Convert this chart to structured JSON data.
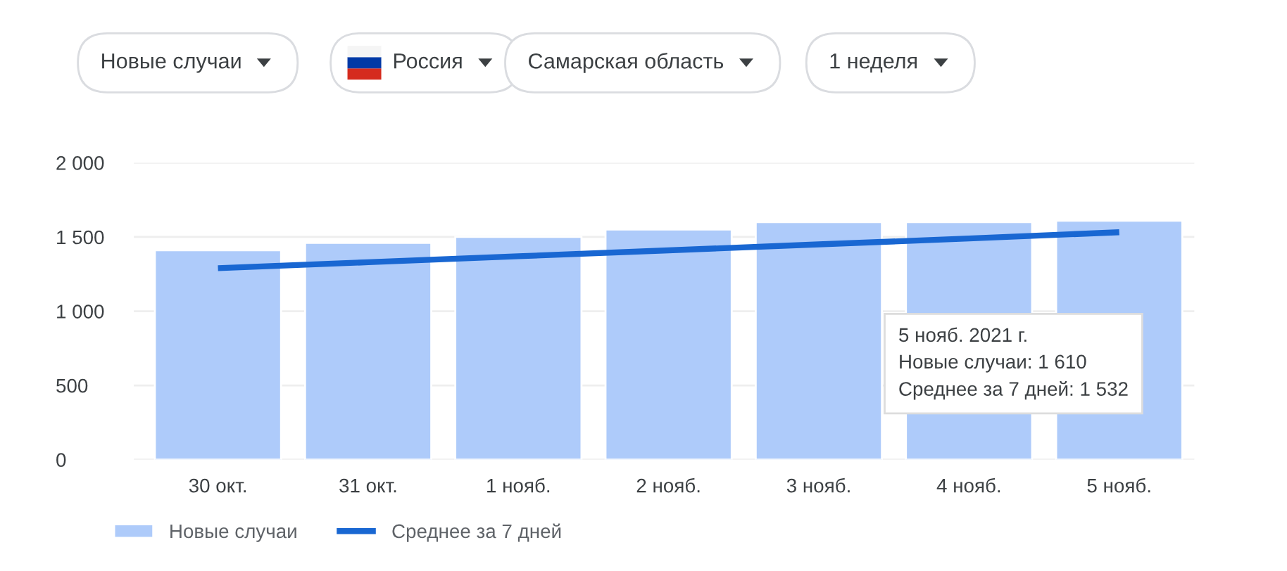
{
  "chart_data": {
    "type": "bar",
    "categories": [
      "30 окт.",
      "31 окт.",
      "1 нояб.",
      "2 нояб.",
      "3 нояб.",
      "4 нояб.",
      "5 нояб."
    ],
    "series": [
      {
        "name": "Новые случаи",
        "color": "#aecbfa",
        "values": [
          1410,
          1460,
          1500,
          1550,
          1600,
          1600,
          1610
        ]
      },
      {
        "name": "Среднее за 7 дней",
        "type": "line",
        "color": "#1967d2",
        "values": [
          1290,
          1330,
          1370,
          1410,
          1450,
          1490,
          1532
        ]
      }
    ],
    "ylim": [
      0,
      2000
    ],
    "yticks": [
      0,
      500,
      {
        "value": 1000,
        "label": "1 000"
      },
      {
        "value": 1500,
        "label": "1 500"
      },
      {
        "value": 2000,
        "label": "2 000"
      }
    ],
    "grid": "y",
    "legend": "bottom left",
    "line_style": "solid",
    "annotations": [
      "Новые случаи",
      "Россия",
      "Самарская область",
      "1 неделя",
      "5 нояб. 2021 г.\nНовые случаи: 1 610\nСреднее за 7 дней: 1 532"
    ]
  }
}
